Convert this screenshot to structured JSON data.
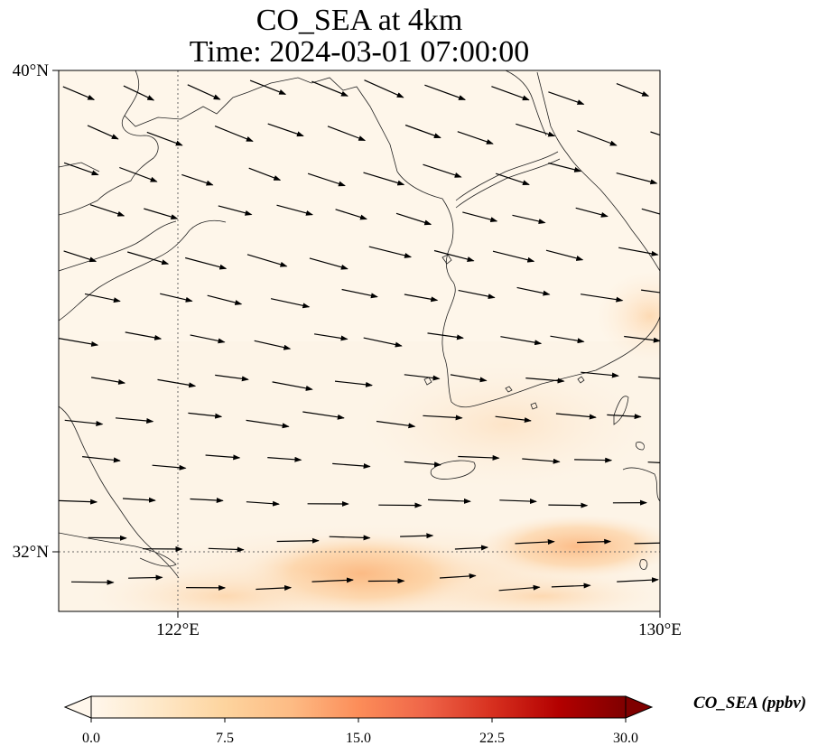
{
  "title_line1": "CO_SEA at 4km",
  "title_line2": "Time: 2024-03-01 07:00:00",
  "map": {
    "lon_range": [
      119,
      130
    ],
    "lat_range": [
      31,
      40
    ],
    "lat_ticks": [
      {
        "value": 40,
        "label": "40°N"
      },
      {
        "value": 32,
        "label": "32°N"
      }
    ],
    "lon_ticks": [
      {
        "value": 122,
        "label": "122°E"
      },
      {
        "value": 130,
        "label": "130°E"
      }
    ],
    "gridlines": "dotted at 122°E and 32°N"
  },
  "colorbar": {
    "label": "CO_SEA (ppbv)",
    "ticks": [
      "0.0",
      "7.5",
      "15.0",
      "22.5",
      "30.0"
    ],
    "range": [
      0,
      30
    ],
    "colormap": "OrRd",
    "colors": [
      "#fff7ec",
      "#fee8c8",
      "#fdd49e",
      "#fdbb84",
      "#fc8d59",
      "#ef6548",
      "#d7301f",
      "#b30000",
      "#7f0000"
    ],
    "extend": "both"
  },
  "wind_vectors": "eastward to east-south-eastward winds across the domain"
}
